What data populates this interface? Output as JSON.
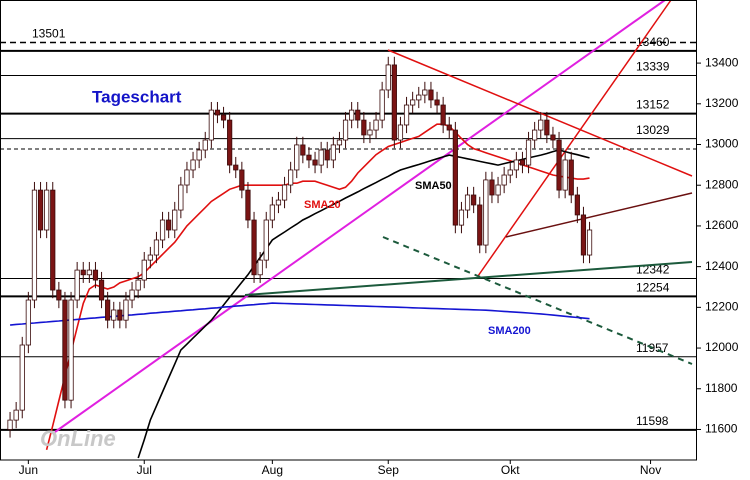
{
  "chart_data": {
    "type": "candlestick",
    "title": "Tageschart",
    "logo": "OnLine",
    "ylim": [
      11450,
      13710
    ],
    "yticks": [
      11600,
      11800,
      12000,
      12200,
      12400,
      12600,
      12800,
      13000,
      13200,
      13400
    ],
    "up_color": "#ffffff",
    "down_color": "#7a1414",
    "categories": [
      null,
      null,
      null,
      "Jun",
      null,
      null,
      null,
      null,
      null,
      null,
      null,
      null,
      null,
      null,
      null,
      null,
      null,
      null,
      null,
      null,
      null,
      null,
      "Jul",
      null,
      null,
      null,
      null,
      null,
      null,
      null,
      null,
      null,
      null,
      null,
      null,
      null,
      null,
      null,
      null,
      null,
      null,
      null,
      null,
      "Aug",
      null,
      null,
      null,
      null,
      null,
      null,
      null,
      null,
      null,
      null,
      null,
      null,
      null,
      null,
      null,
      null,
      null,
      null,
      "Sep",
      null,
      null,
      null,
      null,
      null,
      null,
      null,
      null,
      null,
      null,
      null,
      null,
      null,
      null,
      null,
      null,
      null,
      null,
      null,
      "Okt",
      null,
      null,
      null,
      null,
      null,
      null,
      null,
      null,
      null,
      null,
      null,
      null,
      null,
      null,
      null,
      null,
      null,
      null,
      null,
      null,
      null,
      null,
      "Nov",
      null,
      null,
      null,
      null,
      null,
      null,
      null
    ],
    "open": [
      11600,
      11646,
      11695,
      12015,
      12236,
      12776,
      12580,
      12776,
      12285,
      12236,
      11744,
      12236,
      12383,
      12360,
      12383,
      12334,
      12236,
      12137,
      12187,
      12137,
      12236,
      12285,
      12334,
      12432,
      12457,
      12531,
      12629,
      12580,
      12678,
      12801,
      12875,
      12924,
      12973,
      13022,
      13169,
      13145,
      13120,
      12899,
      12875,
      12776,
      12629,
      12360,
      12432,
      12629,
      12703,
      12727,
      12801,
      12875,
      12998,
      12948,
      12924,
      12899,
      12973,
      12924,
      12998,
      13022,
      13120,
      13169,
      13120,
      13047,
      13071,
      13120,
      13268,
      13391,
      13022,
      13096,
      13194,
      13219,
      13243,
      13268,
      13219,
      13194,
      13096,
      13071,
      12604,
      12678,
      12752,
      12703,
      12506,
      12826,
      12752,
      12801,
      12850,
      12875,
      12924,
      12899,
      13022,
      13071,
      13120,
      13047,
      13022,
      12776,
      12924,
      12752,
      12654,
      12457,
      null,
      null,
      null,
      null,
      null,
      null,
      null,
      null,
      null,
      null,
      null,
      null,
      null,
      null,
      null,
      null,
      null
    ],
    "high": [
      11686,
      11735,
      12055,
      12276,
      12816,
      12816,
      12816,
      12816,
      12325,
      12276,
      12276,
      12423,
      12423,
      12423,
      12423,
      12374,
      12276,
      12227,
      12227,
      12276,
      12325,
      12374,
      12472,
      12497,
      12571,
      12669,
      12669,
      12718,
      12841,
      12915,
      12964,
      13013,
      13062,
      13209,
      13209,
      13185,
      13160,
      12939,
      12915,
      12816,
      12669,
      12472,
      12669,
      12743,
      12767,
      12841,
      12915,
      13038,
      13038,
      12988,
      12964,
      13013,
      13013,
      13038,
      13062,
      13160,
      13209,
      13209,
      13160,
      13111,
      13160,
      13308,
      13431,
      13431,
      13136,
      13234,
      13259,
      13283,
      13308,
      13308,
      13259,
      13234,
      13136,
      13111,
      12718,
      12792,
      12792,
      12743,
      12866,
      12866,
      12841,
      12890,
      12915,
      12964,
      12964,
      13062,
      13111,
      13160,
      13160,
      13087,
      13062,
      12964,
      12964,
      12792,
      12694,
      12620,
      null,
      null,
      null,
      null,
      null,
      null,
      null,
      null,
      null,
      null,
      null,
      null,
      null,
      null,
      null,
      null,
      null
    ],
    "low": [
      11560,
      11606,
      11655,
      11975,
      12196,
      12540,
      12540,
      12245,
      12196,
      11704,
      11704,
      12196,
      12320,
      12320,
      12294,
      12196,
      12097,
      12097,
      12097,
      12097,
      12196,
      12245,
      12294,
      12392,
      12417,
      12491,
      12540,
      12540,
      12638,
      12761,
      12835,
      12884,
      12933,
      12982,
      13105,
      13080,
      12859,
      12835,
      12736,
      12589,
      12320,
      12320,
      12392,
      12589,
      12663,
      12687,
      12761,
      12835,
      12908,
      12884,
      12859,
      12859,
      12884,
      12884,
      12958,
      12982,
      13080,
      13080,
      13007,
      13007,
      13031,
      13080,
      13228,
      12982,
      12982,
      13056,
      13154,
      13179,
      13203,
      13179,
      13154,
      13056,
      13031,
      12564,
      12564,
      12638,
      12663,
      12466,
      12466,
      12712,
      12712,
      12761,
      12810,
      12835,
      12859,
      12859,
      12982,
      13031,
      13007,
      12982,
      12736,
      12736,
      12712,
      12614,
      12417,
      12417,
      null,
      null,
      null,
      null,
      null,
      null,
      null,
      null,
      null,
      null,
      null,
      null,
      null,
      null,
      null,
      null,
      null
    ],
    "close": [
      11646,
      11695,
      12015,
      12236,
      12776,
      12580,
      12776,
      12285,
      12236,
      11744,
      12236,
      12383,
      12360,
      12383,
      12334,
      12236,
      12137,
      12187,
      12137,
      12236,
      12285,
      12334,
      12432,
      12457,
      12531,
      12629,
      12580,
      12678,
      12801,
      12875,
      12924,
      12973,
      13022,
      13169,
      13145,
      13120,
      12899,
      12875,
      12776,
      12629,
      12360,
      12432,
      12629,
      12703,
      12727,
      12801,
      12875,
      12998,
      12948,
      12924,
      12899,
      12973,
      12924,
      12998,
      13022,
      13120,
      13169,
      13120,
      13047,
      13071,
      13120,
      13268,
      13391,
      13022,
      13096,
      13194,
      13219,
      13243,
      13268,
      13219,
      13194,
      13096,
      13071,
      12604,
      12678,
      12752,
      12703,
      12506,
      12826,
      12752,
      12801,
      12850,
      12875,
      12924,
      12899,
      13022,
      13071,
      13120,
      13047,
      13022,
      12776,
      12924,
      12752,
      12654,
      12457,
      12580,
      null,
      null,
      null,
      null,
      null,
      null,
      null,
      null,
      null,
      null,
      null,
      null,
      null,
      null,
      null,
      null,
      null
    ],
    "series": [
      {
        "name": "SMA20",
        "color": "#e01010",
        "values": [
          null,
          null,
          null,
          null,
          null,
          null,
          11500,
          11620,
          11740,
          11860,
          11980,
          12100,
          12220,
          12290,
          12310,
          12300,
          12290,
          12300,
          12320,
          12330,
          12340,
          12350,
          12370,
          12400,
          12430,
          12460,
          12490,
          12520,
          12560,
          12600,
          12630,
          12660,
          12690,
          12720,
          12740,
          12760,
          12780,
          12790,
          12800,
          12800,
          12800,
          12800,
          12800,
          12800,
          12800,
          12800,
          12810,
          12810,
          12820,
          12820,
          12820,
          12810,
          12800,
          12790,
          12780,
          12790,
          12820,
          12860,
          12890,
          12920,
          12950,
          12970,
          12990,
          13000,
          13010,
          13020,
          13030,
          13040,
          13060,
          13080,
          13100,
          13100,
          13090,
          13060,
          13030,
          13000,
          12980,
          12970,
          12960,
          12950,
          12940,
          12930,
          12920,
          12910,
          12900,
          12890,
          12880,
          12870,
          12860,
          12850,
          12845,
          12840,
          12835,
          12830,
          12830,
          12835,
          null,
          null,
          null,
          null,
          null,
          null,
          null,
          null,
          null,
          null,
          null,
          null,
          null,
          null,
          null,
          null,
          null
        ]
      },
      {
        "name": "SMA50",
        "color": "#000000",
        "values": [
          null,
          null,
          null,
          null,
          null,
          null,
          null,
          null,
          null,
          null,
          null,
          null,
          null,
          null,
          null,
          null,
          null,
          null,
          null,
          null,
          null,
          11460,
          11550,
          11646,
          11715,
          11784,
          11853,
          11922,
          11990,
          12019,
          12049,
          12078,
          12108,
          12137,
          12174,
          12211,
          12249,
          12286,
          12323,
          12360,
          12403,
          12445,
          12488,
          12531,
          12551,
          12570,
          12590,
          12609,
          12629,
          12644,
          12660,
          12675,
          12691,
          12706,
          12721,
          12737,
          12752,
          12767,
          12783,
          12798,
          12813,
          12829,
          12844,
          12860,
          12875,
          12884,
          12893,
          12902,
          12911,
          12921,
          12930,
          12939,
          12948,
          12942,
          12936,
          12930,
          12924,
          12917,
          12911,
          12905,
          12899,
          12906,
          12913,
          12920,
          12927,
          12934,
          12941,
          12948,
          12956,
          12965,
          12973,
          12965,
          12957,
          12950,
          12942,
          12934,
          null,
          null,
          null,
          null,
          null,
          null,
          null,
          null,
          null,
          null,
          null,
          null,
          null,
          null,
          null,
          null,
          null
        ]
      },
      {
        "name": "SMA200",
        "color": "#1414d2",
        "values": [
          12113,
          12116,
          12118,
          12121,
          12123,
          12126,
          12128,
          12131,
          12133,
          12136,
          12138,
          12141,
          12143,
          12146,
          12148,
          12151,
          12153,
          12156,
          12158,
          12161,
          12163,
          12166,
          12168,
          12171,
          12173,
          12176,
          12178,
          12181,
          12183,
          12186,
          12188,
          12191,
          12193,
          12196,
          12198,
          12201,
          12203,
          12206,
          12208,
          12211,
          12213,
          12216,
          12218,
          12221,
          12220,
          12219,
          12218,
          12217,
          12216,
          12215,
          12214,
          12213,
          12212,
          12211,
          12210,
          12209,
          12208,
          12207,
          12206,
          12205,
          12204,
          12203,
          12202,
          12201,
          12200,
          12199,
          12198,
          12197,
          12196,
          12195,
          12194,
          12193,
          12192,
          12191,
          12190,
          12189,
          12188,
          12187,
          12186,
          12184,
          12182,
          12180,
          12178,
          12176,
          12174,
          12172,
          12170,
          12168,
          12165,
          12162,
          12159,
          12156,
          12153,
          12150,
          12147,
          12144,
          null,
          null,
          null,
          null,
          null,
          null,
          null,
          null,
          null,
          null,
          null,
          null,
          null,
          null,
          null,
          null,
          null
        ]
      }
    ],
    "levels": [
      {
        "value": 13501,
        "style": "dashed",
        "label_side": "left"
      },
      {
        "value": 13460,
        "style": "thick",
        "label_side": "right"
      },
      {
        "value": 13339,
        "style": "thin",
        "label_side": "right"
      },
      {
        "value": 13152,
        "style": "thick",
        "label_side": "right"
      },
      {
        "value": 13029,
        "style": "thin",
        "label_side": "right"
      },
      {
        "value": 12342,
        "style": "thin",
        "label_side": "right"
      },
      {
        "value": 12254,
        "style": "thick",
        "label_side": "right"
      },
      {
        "value": 11957,
        "style": "thin",
        "label_side": "right"
      },
      {
        "value": 11598,
        "style": "thick",
        "label_side": "right"
      }
    ],
    "guides": [
      12978
    ]
  }
}
